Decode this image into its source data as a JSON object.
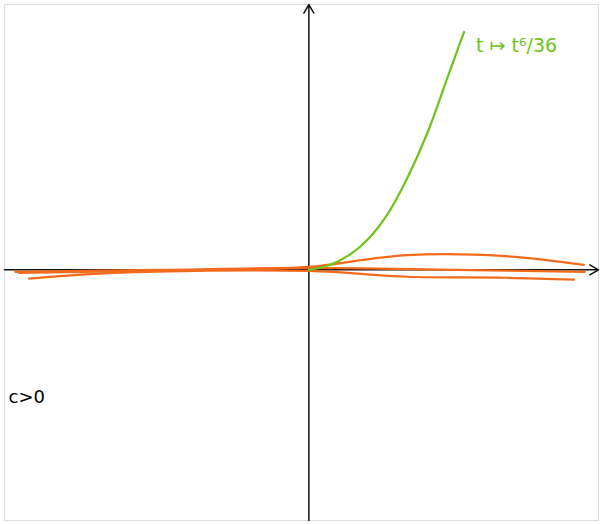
{
  "chart_data": {
    "type": "line",
    "xlim": [
      -6.2,
      5.9
    ],
    "ylim": [
      -5.1,
      5.4
    ],
    "tick_labels": false,
    "grid": false,
    "series": [
      {
        "color": "#6cc417",
        "x": [
          0,
          0.42,
          0.82,
          1.22,
          1.62,
          2.02,
          2.42,
          2.82,
          3.16
        ],
        "values": [
          0,
          0.1,
          0.3,
          0.64,
          1.16,
          1.9,
          2.8,
          3.9,
          4.84
        ]
      },
      {
        "color": "#f26b1d",
        "x": [
          -5.98,
          -3,
          0,
          3,
          5.62
        ],
        "values": [
          -0.04,
          0,
          0.04,
          0,
          -0.04
        ]
      },
      {
        "color": "#f26b1d",
        "x": [
          -5.9,
          -1,
          0,
          2,
          4,
          5.6
        ],
        "values": [
          -0.06,
          0.02,
          0.06,
          0.3,
          0.28,
          0.1
        ]
      },
      {
        "color": "#f26b1d",
        "x": [
          -5.7,
          -4,
          0,
          2,
          4,
          5.4
        ],
        "values": [
          -0.18,
          -0.06,
          -0.02,
          -0.14,
          -0.16,
          -0.2
        ]
      }
    ],
    "annotations": [
      {
        "text": "t ↦ t⁶/36",
        "color": "#6cc417"
      },
      {
        "text": "c>0",
        "color": "#000000"
      }
    ]
  }
}
